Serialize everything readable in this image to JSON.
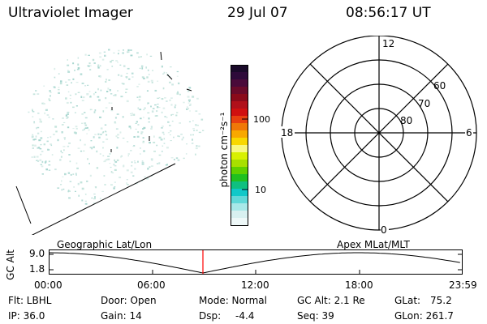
{
  "header": {
    "instrument": "Ultraviolet Imager",
    "date": "29 Jul 07",
    "time": "08:56:17 UT"
  },
  "colorbar": {
    "unit_label": "photon cm⁻²s⁻¹",
    "tick_labels": [
      "100",
      "10"
    ],
    "colors_top_to_bottom": [
      "#1a0a2a",
      "#2e0a3a",
      "#4a0a3a",
      "#6a0a2a",
      "#8a0a1a",
      "#b0101a",
      "#d01010",
      "#e84010",
      "#f07808",
      "#f8a800",
      "#f8d800",
      "#f8f880",
      "#d8f000",
      "#a8e000",
      "#60d000",
      "#20c020",
      "#10c080",
      "#10c8c8",
      "#60d8d8",
      "#a8e8e8",
      "#d8f0f0",
      "#eef8f8"
    ]
  },
  "polar": {
    "mlt_labels": {
      "top": "12",
      "bottom": "0",
      "left": "18",
      "right": "6"
    },
    "lat_labels": [
      "60",
      "70",
      "80"
    ]
  },
  "timeline": {
    "left_label": "Geographic Lat/Lon",
    "right_label": "Apex MLat/MLT",
    "axis_title": "GC Alt",
    "y_max": "9.0",
    "y_min": "1.8",
    "x_ticks": [
      "00:00",
      "06:00",
      "12:00",
      "18:00",
      "23:59"
    ],
    "marker_time": "08:56",
    "marker_color": "#ff0000"
  },
  "status": {
    "flt": "Flt: LBHL",
    "ip": "IP: 36.0",
    "door": "Door: Open",
    "gain": "Gain: 14",
    "mode": "Mode: Normal",
    "dsp": "Dsp:",
    "dsp_value": "-4.4",
    "gc_alt": "GC Alt: 2.1 Re",
    "seq": "Seq: 39",
    "glat": "GLat:",
    "glat_value": "75.2",
    "glon": "GLon: 261.7"
  }
}
